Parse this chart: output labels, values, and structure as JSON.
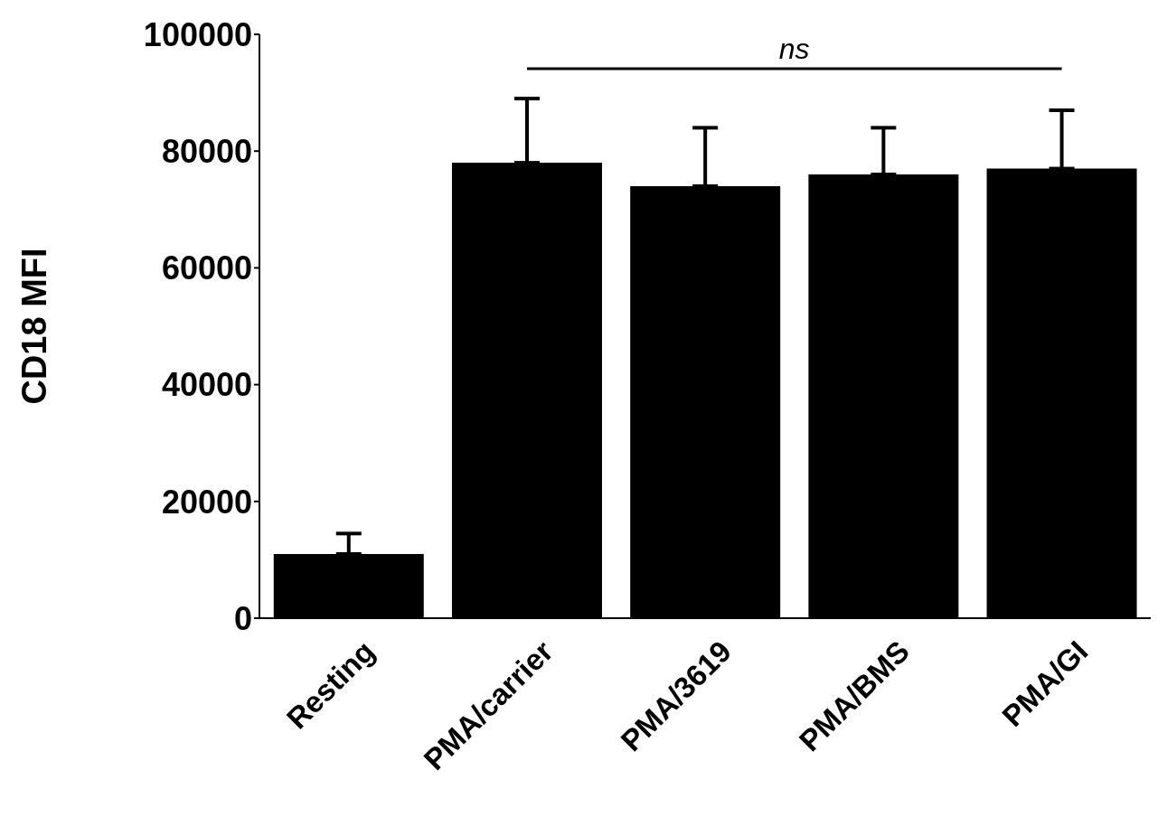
{
  "chart_data": {
    "type": "bar",
    "ylabel": "CD18 MFI",
    "categories": [
      "Resting",
      "PMA/carrier",
      "PMA/3619",
      "PMA/BMS",
      "PMA/GI"
    ],
    "values": [
      11000,
      78000,
      74000,
      76000,
      77000
    ],
    "errors": [
      [
        11000,
        14500
      ],
      [
        78000,
        89000
      ],
      [
        74000,
        84000
      ],
      [
        76000,
        84000
      ],
      [
        77000,
        87000
      ]
    ],
    "color": "#000000",
    "ylim": [
      0,
      100000
    ],
    "yticks": [
      0,
      20000,
      40000,
      60000,
      80000,
      100000
    ],
    "grid": false,
    "legend": false,
    "annotations": [
      "ns"
    ]
  }
}
